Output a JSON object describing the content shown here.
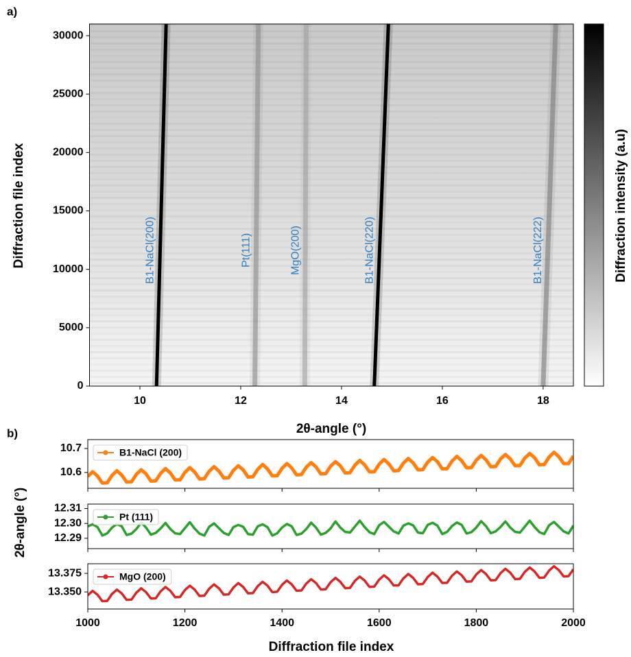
{
  "chart_data": [
    {
      "type": "heatmap",
      "panel_label": "a)",
      "xlabel": "2θ-angle (°)",
      "ylabel": "Diffraction file index",
      "colorbar_label": "Diffraction intensity (a.u)",
      "xlim": [
        9,
        18.6
      ],
      "xticks": [
        10,
        12,
        14,
        16,
        18
      ],
      "ylim": [
        0,
        31000
      ],
      "yticks": [
        0,
        5000,
        10000,
        15000,
        20000,
        25000,
        30000
      ],
      "cmap": [
        "#ffffff",
        "#000000"
      ],
      "label_color": "#2f7fc1",
      "series": [
        {
          "name": "B1-NaCl(200)",
          "x": [
            10.33,
            10.52
          ],
          "y": [
            0,
            31000
          ],
          "color": "#000000"
        },
        {
          "name": "Pt(111)",
          "x": [
            12.28,
            12.35
          ],
          "y": [
            0,
            31000
          ],
          "color": "#8a8a8a"
        },
        {
          "name": "MgO(200)",
          "x": [
            13.27,
            13.3
          ],
          "y": [
            0,
            31000
          ],
          "color": "#a0a0a0"
        },
        {
          "name": "B1-NaCl(220)",
          "x": [
            14.65,
            14.93
          ],
          "y": [
            0,
            31000
          ],
          "color": "#000000"
        },
        {
          "name": "B1-NaCl(222)",
          "x": [
            18.0,
            18.25
          ],
          "y": [
            0,
            31000
          ],
          "color": "#7a7a7a"
        }
      ]
    },
    {
      "type": "line",
      "panel_label": "b)",
      "xlabel": "Diffraction file index",
      "ylabel": "2θ-angle (°)",
      "xlim": [
        1000,
        2000
      ],
      "xticks": [
        1000,
        1200,
        1400,
        1600,
        1800,
        2000
      ],
      "legend": "upper left",
      "x": [
        1000,
        1010,
        1020,
        1030,
        1040,
        1050,
        1060,
        1070,
        1080,
        1090,
        1100,
        1110,
        1120,
        1130,
        1140,
        1150,
        1160,
        1170,
        1180,
        1190,
        1200,
        1210,
        1220,
        1230,
        1240,
        1250,
        1260,
        1270,
        1280,
        1290,
        1300,
        1310,
        1320,
        1330,
        1340,
        1350,
        1360,
        1370,
        1380,
        1390,
        1400,
        1410,
        1420,
        1430,
        1440,
        1450,
        1460,
        1470,
        1480,
        1490,
        1500,
        1510,
        1520,
        1530,
        1540,
        1550,
        1560,
        1570,
        1580,
        1590,
        1600,
        1610,
        1620,
        1630,
        1640,
        1650,
        1660,
        1670,
        1680,
        1690,
        1700,
        1710,
        1720,
        1730,
        1740,
        1750,
        1760,
        1770,
        1780,
        1790,
        1800,
        1810,
        1820,
        1830,
        1840,
        1850,
        1860,
        1870,
        1880,
        1890,
        1900,
        1910,
        1920,
        1930,
        1940,
        1950,
        1960,
        1970,
        1980,
        1990,
        2000
      ],
      "series": [
        {
          "name": "B1-NaCl (200)",
          "color": "#ff7f0e",
          "ylim": [
            10.534,
            10.737
          ],
          "yticks": [
            10.6,
            10.7
          ],
          "values": [
            10.583,
            10.603,
            10.585,
            10.556,
            10.557,
            10.588,
            10.607,
            10.589,
            10.56,
            10.561,
            10.592,
            10.611,
            10.594,
            10.564,
            10.565,
            10.596,
            10.616,
            10.598,
            10.569,
            10.569,
            10.6,
            10.62,
            10.602,
            10.573,
            10.574,
            10.605,
            10.624,
            10.606,
            10.577,
            10.578,
            10.609,
            10.628,
            10.611,
            10.581,
            10.582,
            10.613,
            10.633,
            10.615,
            10.586,
            10.586,
            10.617,
            10.637,
            10.619,
            10.59,
            10.591,
            10.622,
            10.641,
            10.623,
            10.594,
            10.595,
            10.626,
            10.645,
            10.628,
            10.598,
            10.599,
            10.63,
            10.65,
            10.632,
            10.603,
            10.603,
            10.634,
            10.654,
            10.636,
            10.607,
            10.608,
            10.639,
            10.658,
            10.64,
            10.611,
            10.612,
            10.643,
            10.662,
            10.645,
            10.615,
            10.616,
            10.647,
            10.667,
            10.649,
            10.62,
            10.62,
            10.651,
            10.671,
            10.653,
            10.624,
            10.625,
            10.656,
            10.675,
            10.657,
            10.628,
            10.629,
            10.66,
            10.679,
            10.662,
            10.632,
            10.633,
            10.664,
            10.684,
            10.666,
            10.637,
            10.637,
            10.668
          ]
        },
        {
          "name": "Pt (111)",
          "color": "#2ca02c",
          "ylim": [
            12.283,
            12.313
          ],
          "yticks": [
            12.29,
            {
              "value": 12.3,
              "label": "12.30"
            },
            12.31
          ],
          "values": [
            12.298,
            12.2994,
            12.2975,
            12.2918,
            12.2933,
            12.2972,
            12.2996,
            12.298,
            12.2922,
            12.2931,
            12.2962,
            12.3005,
            12.2972,
            12.2924,
            12.2936,
            12.2966,
            12.3003,
            12.2962,
            12.2933,
            12.2928,
            12.2968,
            12.3008,
            12.2966,
            12.2931,
            12.2918,
            12.2977,
            12.3,
            12.2968,
            12.2936,
            12.2922,
            12.2975,
            12.299,
            12.2977,
            12.2928,
            12.2924,
            12.298,
            12.2994,
            12.2975,
            12.2918,
            12.2933,
            12.2972,
            12.2996,
            12.298,
            12.2922,
            12.2931,
            12.2962,
            12.3005,
            12.2972,
            12.2924,
            12.2936,
            12.2966,
            12.3013,
            12.2972,
            12.2943,
            12.2938,
            12.2978,
            12.3018,
            12.2976,
            12.2941,
            12.2928,
            12.2987,
            12.301,
            12.2978,
            12.2946,
            12.2932,
            12.2985,
            12.3,
            12.2987,
            12.2938,
            12.2934,
            12.299,
            12.3004,
            12.2985,
            12.2928,
            12.2943,
            12.2982,
            12.3006,
            12.299,
            12.2932,
            12.2941,
            12.2972,
            12.3015,
            12.2982,
            12.2934,
            12.2946,
            12.2976,
            12.3013,
            12.2972,
            12.2943,
            12.2938,
            12.2978,
            12.3018,
            12.2976,
            12.2941,
            12.2928,
            12.2987,
            12.301,
            12.2978,
            12.2946,
            12.2932,
            12.2985
          ]
        },
        {
          "name": "MgO (200)",
          "color": "#d62728",
          "ylim": [
            13.327,
            13.388
          ],
          "yticks": [
            {
              "value": 13.35,
              "label": "13.350"
            },
            13.375
          ],
          "values": [
            13.3455,
            13.3514,
            13.3462,
            13.3376,
            13.3379,
            13.3473,
            13.3531,
            13.348,
            13.3393,
            13.3397,
            13.349,
            13.3549,
            13.3497,
            13.3411,
            13.3414,
            13.3508,
            13.3566,
            13.3515,
            13.3428,
            13.3432,
            13.3525,
            13.3584,
            13.3532,
            13.3446,
            13.3449,
            13.3543,
            13.3601,
            13.355,
            13.3463,
            13.3467,
            13.356,
            13.3619,
            13.3567,
            13.3481,
            13.3484,
            13.3578,
            13.3636,
            13.3585,
            13.3498,
            13.3502,
            13.3595,
            13.3654,
            13.3602,
            13.3516,
            13.3519,
            13.3613,
            13.3671,
            13.362,
            13.3533,
            13.3537,
            13.363,
            13.3689,
            13.3637,
            13.3551,
            13.3554,
            13.3648,
            13.3706,
            13.3655,
            13.3568,
            13.3572,
            13.3665,
            13.3724,
            13.3672,
            13.3586,
            13.3589,
            13.3683,
            13.3741,
            13.369,
            13.3603,
            13.3607,
            13.37,
            13.3759,
            13.3707,
            13.3621,
            13.3624,
            13.3718,
            13.3776,
            13.3725,
            13.3638,
            13.3642,
            13.3735,
            13.3794,
            13.3742,
            13.3656,
            13.3659,
            13.3753,
            13.3811,
            13.376,
            13.3673,
            13.3677,
            13.377,
            13.3829,
            13.3777,
            13.3691,
            13.3694,
            13.3788,
            13.3846,
            13.3795,
            13.3708,
            13.3712,
            13.3805
          ]
        }
      ]
    }
  ]
}
